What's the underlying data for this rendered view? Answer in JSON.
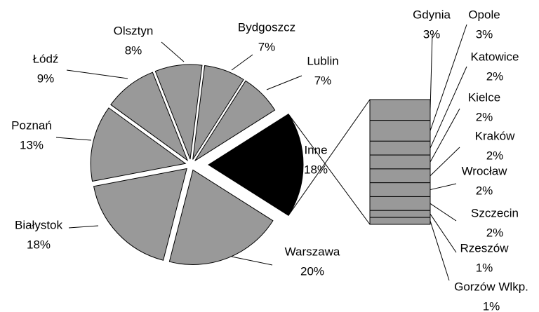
{
  "chart_data": {
    "type": "pie",
    "categories": [
      "Inne",
      "Warszawa",
      "Białystok",
      "Poznań",
      "Łódź",
      "Olsztyn",
      "Bydgoszcz",
      "Lublin"
    ],
    "values": [
      18,
      20,
      18,
      13,
      9,
      8,
      7,
      7
    ],
    "value_labels": [
      "18%",
      "20%",
      "18%",
      "13%",
      "9%",
      "8%",
      "7%",
      "7%"
    ],
    "color": "#999999",
    "highlight_color": "#000000",
    "breakdown": {
      "categories": [
        "Gdynia",
        "Opole",
        "Katowice",
        "Kielce",
        "Kraków",
        "Wrocław",
        "Szczecin",
        "Rzeszów",
        "Gorzów Wlkp."
      ],
      "values": [
        3,
        3,
        2,
        2,
        2,
        2,
        2,
        1,
        1
      ],
      "value_labels": [
        "3%",
        "3%",
        "2%",
        "2%",
        "2%",
        "2%",
        "2%",
        "1%",
        "1%"
      ],
      "color": "#999999"
    }
  }
}
